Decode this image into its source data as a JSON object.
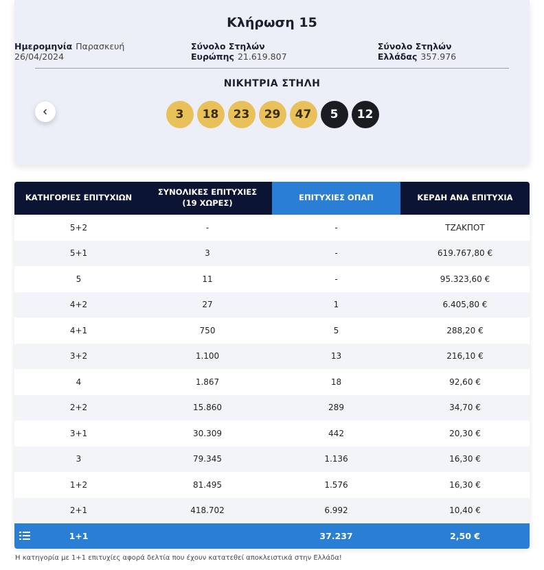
{
  "draw": {
    "title": "Κλήρωση 15",
    "date_label": "Ημερομηνία",
    "date_value": "Παρασκευή 26/04/2024",
    "europe_label": "Σύνολο Στηλών Ευρώπης",
    "europe_value": "21.619.807",
    "greece_label": "Σύνολο Στηλών Ελλάδας",
    "greece_value": "357.976",
    "winning_title": "ΝΙΚΗΤΡΙΑ ΣΤΗΛΗ",
    "prev_icon": "chevron-left-icon",
    "main_numbers": [
      "3",
      "18",
      "23",
      "29",
      "47"
    ],
    "bonus_numbers": [
      "5",
      "12"
    ]
  },
  "table": {
    "headers": [
      "ΚΑΤΗΓΟΡΙΕΣ ΕΠΙΤΥΧΙΩΝ",
      "ΣΥΝΟΛΙΚΕΣ ΕΠΙΤΥΧΙΕΣ",
      "(19 ΧΩΡΕΣ)",
      "ΕΠΙΤΥΧΙΕΣ ΟΠΑΠ",
      "ΚΕΡΔΗ ΑΝΑ ΕΠΙΤΥΧΙΑ"
    ],
    "rows": [
      [
        "5+2",
        "-",
        "-",
        "ΤΖΑΚΠΟΤ"
      ],
      [
        "5+1",
        "3",
        "-",
        "619.767,80 €"
      ],
      [
        "5",
        "11",
        "-",
        "95.323,60 €"
      ],
      [
        "4+2",
        "27",
        "1",
        "6.405,80 €"
      ],
      [
        "4+1",
        "750",
        "5",
        "288,20 €"
      ],
      [
        "3+2",
        "1.100",
        "13",
        "216,10 €"
      ],
      [
        "4",
        "1.867",
        "18",
        "92,60 €"
      ],
      [
        "2+2",
        "15.860",
        "289",
        "34,70 €"
      ],
      [
        "3+1",
        "30.309",
        "442",
        "20,30 €"
      ],
      [
        "3",
        "79.345",
        "1.136",
        "16,30 €"
      ],
      [
        "1+2",
        "81.495",
        "1.576",
        "16,30 €"
      ],
      [
        "2+1",
        "418.702",
        "6.992",
        "10,40 €"
      ]
    ],
    "total_row": [
      "1+1",
      "",
      "37.237",
      "2,50 €"
    ],
    "total_icon": "list-numbers-icon",
    "colors": {
      "header_bg": "#0c1433",
      "opap_bg": "#2a7fd4",
      "main_ball": "#e8c15a",
      "bonus_ball": "#1a1c22"
    }
  },
  "footnote": "Η κατηγορία με 1+1 επιτυχίες αφορά δελτία που έχουν κατατεθεί αποκλειστικά στην Ελλάδα!"
}
